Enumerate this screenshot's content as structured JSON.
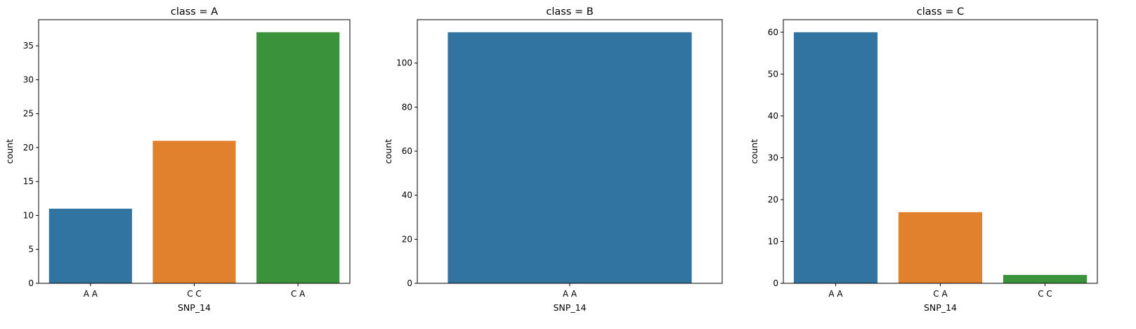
{
  "chart_data": [
    {
      "type": "bar",
      "title": "class = A",
      "xlabel": "SNP_14",
      "ylabel": "count",
      "categories": [
        "A A",
        "C C",
        "C A"
      ],
      "values": [
        11,
        21,
        37
      ],
      "colors": [
        "#3274a1",
        "#e1812c",
        "#3a923a"
      ],
      "ylim": [
        0,
        38.85
      ],
      "yticks": [
        0,
        5,
        10,
        15,
        20,
        25,
        30,
        35
      ]
    },
    {
      "type": "bar",
      "title": "class = B",
      "xlabel": "SNP_14",
      "ylabel": "count",
      "categories": [
        "A A"
      ],
      "values": [
        114
      ],
      "colors": [
        "#3274a1"
      ],
      "ylim": [
        0,
        119.7
      ],
      "yticks": [
        0,
        20,
        40,
        60,
        80,
        100
      ]
    },
    {
      "type": "bar",
      "title": "class = C",
      "xlabel": "SNP_14",
      "ylabel": "count",
      "categories": [
        "A A",
        "C A",
        "C C"
      ],
      "values": [
        60,
        17,
        2
      ],
      "colors": [
        "#3274a1",
        "#e1812c",
        "#3a923a"
      ],
      "ylim": [
        0,
        63
      ],
      "yticks": [
        0,
        10,
        20,
        30,
        40,
        50,
        60
      ]
    }
  ]
}
